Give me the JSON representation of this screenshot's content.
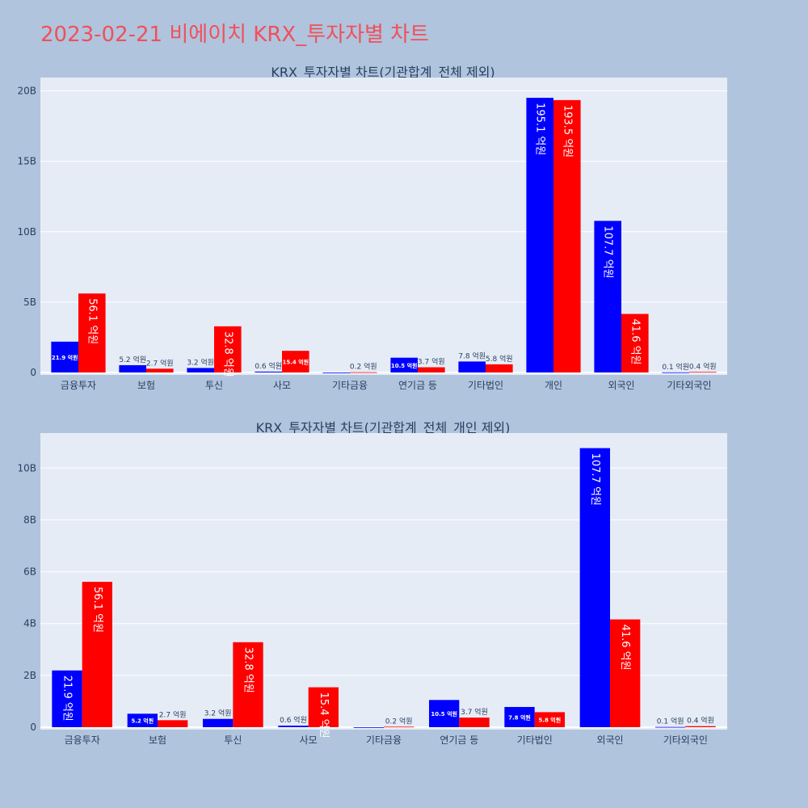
{
  "title": "2023-02-21 비에이치 KRX_투자자별 차트",
  "colors": {
    "buy": "#0000ff",
    "sell": "#ff0000",
    "plot_bg": "#e5ecf6",
    "page_bg": "#b0c4de",
    "title": "#f0505a"
  },
  "chart_data": [
    {
      "type": "bar",
      "title": "KRX_투자자별 차트(기관합계_전체 제외)",
      "categories": [
        "금융투자",
        "보험",
        "투신",
        "사모",
        "기타금융",
        "연기금 등",
        "기타법인",
        "개인",
        "외국인",
        "기타외국인"
      ],
      "series": [
        {
          "values": [
            2190000000,
            520000000,
            320000000,
            60000000,
            0,
            1050000000,
            780000000,
            19510000000,
            10770000000,
            10000000
          ],
          "labels": [
            "21.9 억원",
            "5.2 억원",
            "3.2 억원",
            "0.6 억원",
            "",
            "10.5 억원",
            "7.8 억원",
            "195.1 억원",
            "107.7 억원",
            "0.1 억원"
          ]
        },
        {
          "values": [
            5610000000,
            270000000,
            3280000000,
            1540000000,
            20000000,
            370000000,
            580000000,
            19350000000,
            4160000000,
            40000000
          ],
          "labels": [
            "56.1 억원",
            "2.7 억원",
            "32.8 억원",
            "15.4 억원",
            "0.2 억원",
            "3.7 억원",
            "5.8 억원",
            "193.5 억원",
            "41.6 억원",
            "0.4 억원"
          ]
        }
      ],
      "ylim": [
        0,
        20950000000
      ],
      "yticks": [
        0,
        5000000000,
        10000000000,
        15000000000,
        20000000000
      ],
      "ytick_labels": [
        "0",
        "5B",
        "10B",
        "15B",
        "20B"
      ]
    },
    {
      "type": "bar",
      "title": "KRX_투자자별 차트(기관합계_전체_개인 제외)",
      "categories": [
        "금융투자",
        "보험",
        "투신",
        "사모",
        "기타금융",
        "연기금 등",
        "기타법인",
        "외국인",
        "기타외국인"
      ],
      "series": [
        {
          "values": [
            2190000000,
            520000000,
            320000000,
            60000000,
            0,
            1050000000,
            780000000,
            10770000000,
            10000000
          ],
          "labels": [
            "21.9 억원",
            "5.2 억원",
            "3.2 억원",
            "0.6 억원",
            "",
            "10.5 억원",
            "7.8 억원",
            "107.7 억원",
            "0.1 억원"
          ]
        },
        {
          "values": [
            5610000000,
            270000000,
            3280000000,
            1540000000,
            20000000,
            370000000,
            580000000,
            4160000000,
            40000000
          ],
          "labels": [
            "56.1 억원",
            "2.7 억원",
            "32.8 억원",
            "15.4 억원",
            "0.2 억원",
            "3.7 억원",
            "5.8 억원",
            "41.6 억원",
            "0.4 억원"
          ]
        }
      ],
      "ylim": [
        0,
        11350000000
      ],
      "yticks": [
        0,
        2000000000,
        4000000000,
        6000000000,
        8000000000,
        10000000000
      ],
      "ytick_labels": [
        "0",
        "2B",
        "4B",
        "6B",
        "8B",
        "10B"
      ]
    }
  ]
}
